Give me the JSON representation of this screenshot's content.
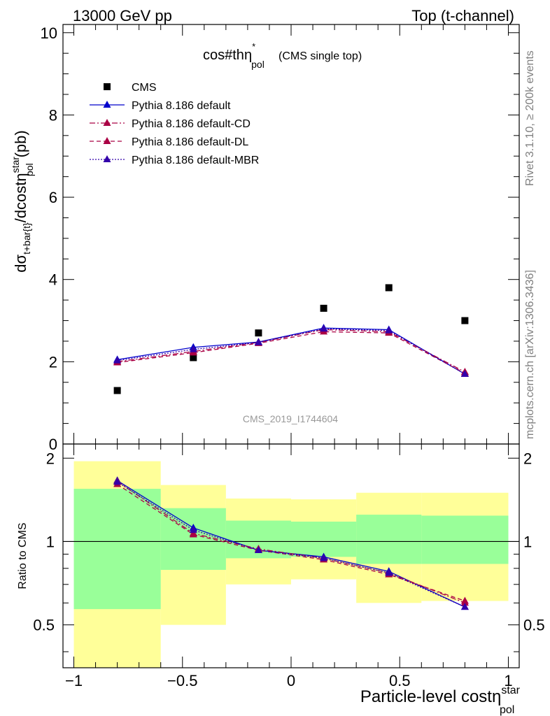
{
  "header": {
    "energy_label": "13000 GeV pp",
    "process_label": "Top (t-channel)"
  },
  "side_labels": {
    "rivet": "Rivet 3.1.10, ≥ 200k events",
    "mcplots": "mcplots.cern.ch [arXiv:1306.3436]"
  },
  "analysis_id": "CMS_2019_I1744604",
  "chart_data": [
    {
      "type": "scatter",
      "panel": "main",
      "title": "cos#thη*pol",
      "title_main": "cos#th",
      "title_eta": "η",
      "title_sup": "*",
      "title_sub": "pol",
      "title_note": "(CMS single top)",
      "ylabel": "dσt+bar{t}/dcostηstarpol (pb)",
      "ylabel_main": "dσ",
      "ylabel_sub1": "t+bar{t}",
      "ylabel_mid": "/dcostη",
      "ylabel_sup": "star",
      "ylabel_sub2": "pol",
      "ylabel_unit": "(pb)",
      "xlim": [
        -1.05,
        1.05
      ],
      "ylim": [
        0,
        10.2
      ],
      "y_ticks": [
        0,
        2,
        4,
        6,
        8,
        10
      ],
      "y_tick_labels": [
        "0",
        "2",
        "4",
        "6",
        "8",
        "10"
      ],
      "grid": false,
      "legend_position": "top-left",
      "x": [
        -0.8,
        -0.45,
        -0.15,
        0.15,
        0.45,
        0.8
      ],
      "series": [
        {
          "name": "CMS",
          "color": "#000000",
          "style": "marker-square",
          "values": [
            1.3,
            2.1,
            2.7,
            3.3,
            3.8,
            3.0
          ]
        },
        {
          "name": "Pythia 8.186 default",
          "color": "#0000cc",
          "style": "solid",
          "values": [
            2.05,
            2.35,
            2.48,
            2.82,
            2.78,
            1.7
          ]
        },
        {
          "name": "Pythia 8.186 default-CD",
          "color": "#aa0044",
          "style": "dashdot",
          "values": [
            2.0,
            2.25,
            2.47,
            2.78,
            2.73,
            1.75
          ]
        },
        {
          "name": "Pythia 8.186 default-DL",
          "color": "#aa0044",
          "style": "dashed",
          "values": [
            1.98,
            2.22,
            2.45,
            2.73,
            2.7,
            1.72
          ]
        },
        {
          "name": "Pythia 8.186 default-MBR",
          "color": "#3300aa",
          "style": "dotted",
          "values": [
            2.03,
            2.3,
            2.47,
            2.8,
            2.76,
            1.7
          ]
        }
      ]
    },
    {
      "type": "line",
      "panel": "ratio",
      "ylabel": "Ratio to CMS",
      "xlabel": "Particle-level costηstarpol",
      "xlabel_main": "Particle-level costη",
      "xlabel_sup": "star",
      "xlabel_sub": "pol",
      "xlim": [
        -1.05,
        1.05
      ],
      "ylim": [
        0.35,
        2.25
      ],
      "y_ticks": [
        0.5,
        1,
        2
      ],
      "y_tick_labels": [
        "0.5",
        "1",
        "2"
      ],
      "x_ticks": [
        -1,
        -0.5,
        0,
        0.5,
        1
      ],
      "x_tick_labels": [
        "−1",
        "−0.5",
        "0",
        "0.5",
        "1"
      ],
      "bin_edges": [
        -1,
        -0.6,
        -0.3,
        0,
        0.3,
        0.6,
        1
      ],
      "band_inner": {
        "color": "#99ff99",
        "lower": [
          0.57,
          0.79,
          0.87,
          0.88,
          0.83,
          0.83
        ],
        "upper": [
          1.55,
          1.32,
          1.19,
          1.18,
          1.25,
          1.24
        ]
      },
      "band_outer": {
        "color": "#ffff99",
        "lower": [
          0.35,
          0.5,
          0.7,
          0.73,
          0.6,
          0.61
        ],
        "upper": [
          1.95,
          1.6,
          1.43,
          1.42,
          1.5,
          1.5
        ]
      },
      "x": [
        -0.8,
        -0.45,
        -0.15,
        0.15,
        0.45,
        0.8
      ],
      "series": [
        {
          "name": "Pythia 8.186 default",
          "color": "#0000cc",
          "style": "solid",
          "values": [
            1.66,
            1.12,
            0.93,
            0.88,
            0.78,
            0.58
          ]
        },
        {
          "name": "Pythia 8.186 default-CD",
          "color": "#aa0044",
          "style": "dashdot",
          "values": [
            1.65,
            1.07,
            0.94,
            0.87,
            0.77,
            0.6
          ]
        },
        {
          "name": "Pythia 8.186 default-DL",
          "color": "#aa0044",
          "style": "dashed",
          "values": [
            1.61,
            1.06,
            0.93,
            0.86,
            0.76,
            0.61
          ]
        },
        {
          "name": "Pythia 8.186 default-MBR",
          "color": "#3300aa",
          "style": "dotted",
          "values": [
            1.64,
            1.1,
            0.93,
            0.87,
            0.77,
            0.58
          ]
        }
      ]
    }
  ]
}
